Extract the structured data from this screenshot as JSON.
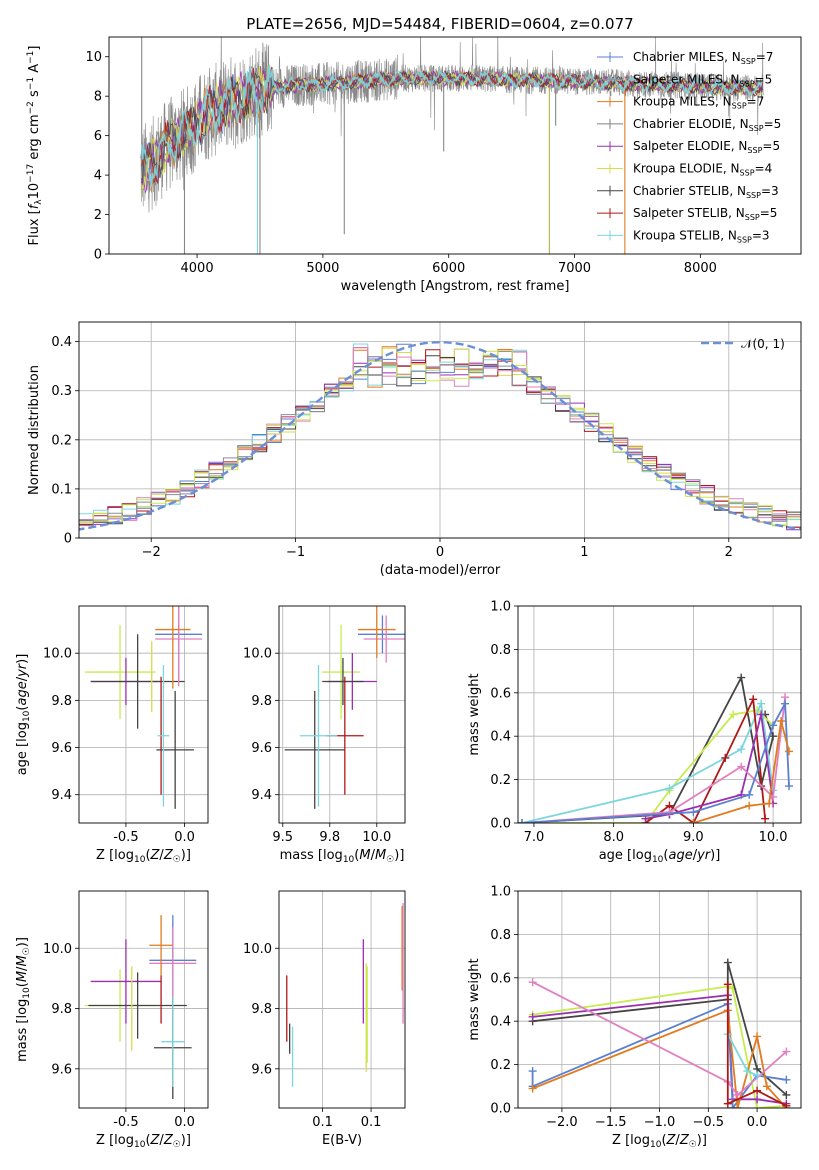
{
  "figure": {
    "title": "PLATE=2656, MJD=54484, FIBERID=0604, z=0.077"
  },
  "colors": {
    "Chabrier MILES": "#5b7fd1",
    "Salpeter MILES": "#8a8aa0",
    "Kroupa MILES": "#e07b20",
    "Chabrier ELODIE": "#808080",
    "Salpeter ELODIE": "#9b2fb0",
    "Kroupa ELODIE": "#d7dc4c",
    "Chabrier STELIB": "#444444",
    "Salpeter STELIB": "#b01818",
    "Kroupa STELIB": "#7dd6df",
    "extra_pink": "#e27fc0",
    "extra_lime": "#c6ec50",
    "normal_curve": "#6a8fd8"
  },
  "chart_data": [
    {
      "id": "spectrum",
      "type": "line",
      "title": "PLATE=2656, MJD=54484, FIBERID=0604, z=0.077",
      "xlabel": "wavelength [Angstrom, rest frame]",
      "ylabel": "Flux [f_λ 10^-17 erg cm^-2 s^-1 A^-1]",
      "xlim": [
        3300,
        8800
      ],
      "ylim": [
        0,
        11
      ],
      "xticks": [
        4000,
        5000,
        6000,
        7000,
        8000
      ],
      "yticks": [
        0,
        2,
        4,
        6,
        8,
        10
      ],
      "grid": false,
      "legend_position": "right",
      "legend": [
        {
          "label": "Chabrier MILES, N",
          "sub": "SSP",
          "suffix": "=7"
        },
        {
          "label": "Salpeter MILES, N",
          "sub": "SSP",
          "suffix": "=5"
        },
        {
          "label": "Kroupa MILES, N",
          "sub": "SSP",
          "suffix": "=7"
        },
        {
          "label": "Chabrier ELODIE, N",
          "sub": "SSP",
          "suffix": "=5"
        },
        {
          "label": "Salpeter ELODIE, N",
          "sub": "SSP",
          "suffix": "=5"
        },
        {
          "label": "Kroupa ELODIE, N",
          "sub": "SSP",
          "suffix": "=4"
        },
        {
          "label": "Chabrier STELIB, N",
          "sub": "SSP",
          "suffix": "=3"
        },
        {
          "label": "Salpeter STELIB, N",
          "sub": "SSP",
          "suffix": "=5"
        },
        {
          "label": "Kroupa STELIB, N",
          "sub": "SSP",
          "suffix": "=3"
        }
      ],
      "continuum_model": [
        [
          3550,
          4.2
        ],
        [
          3650,
          4.6
        ],
        [
          3750,
          5.4
        ],
        [
          3850,
          5.9
        ],
        [
          3950,
          6.3
        ],
        [
          4050,
          7.0
        ],
        [
          4150,
          7.3
        ],
        [
          4250,
          7.7
        ],
        [
          4350,
          7.9
        ],
        [
          4450,
          8.2
        ],
        [
          4550,
          8.4
        ],
        [
          4700,
          8.5
        ],
        [
          4850,
          8.6
        ],
        [
          5000,
          8.6
        ],
        [
          5200,
          8.7
        ],
        [
          5400,
          8.8
        ],
        [
          5600,
          8.9
        ],
        [
          5800,
          8.9
        ],
        [
          6000,
          8.9
        ],
        [
          6200,
          8.9
        ],
        [
          6400,
          8.85
        ],
        [
          6600,
          8.8
        ],
        [
          6800,
          8.8
        ],
        [
          7000,
          8.75
        ],
        [
          7200,
          8.7
        ],
        [
          7400,
          8.65
        ],
        [
          7600,
          8.6
        ],
        [
          7800,
          8.55
        ],
        [
          8000,
          8.5
        ],
        [
          8200,
          8.45
        ],
        [
          8400,
          8.4
        ],
        [
          8500,
          8.4
        ]
      ]
    },
    {
      "id": "residuals",
      "type": "histogram",
      "xlabel": "(data-model)/error",
      "ylabel": "Normed distribution",
      "xlim": [
        -2.5,
        2.5
      ],
      "ylim": [
        0,
        0.44
      ],
      "xticks": [
        -2,
        -1,
        0,
        1,
        2
      ],
      "yticks": [
        0.0,
        0.1,
        0.2,
        0.3,
        0.4
      ],
      "grid": true,
      "legend_position": "top-right",
      "legend": [
        {
          "label": "𝒩(0, 1)"
        }
      ],
      "normal_mu": 0,
      "normal_sigma": 1
    },
    {
      "id": "age-vs-Z",
      "type": "scatter",
      "xlabel": "Z [log10(Z/Z☉)]",
      "ylabel": "age  [log10(age/yr)]",
      "xlim": [
        -0.9,
        0.2
      ],
      "ylim": [
        9.28,
        10.2
      ],
      "xticks": [
        -0.5,
        0.0
      ],
      "yticks": [
        9.4,
        9.6,
        9.8,
        10.0
      ],
      "grid": true,
      "points": [
        {
          "x": -0.55,
          "y": 9.92,
          "xerr": 0.3,
          "yerr": 0.2,
          "c": "extra_lime"
        },
        {
          "x": -0.5,
          "y": 9.88,
          "xerr": 0.3,
          "yerr": 0.1,
          "c": "Salpeter ELODIE"
        },
        {
          "x": -0.4,
          "y": 9.88,
          "xerr": 0.4,
          "yerr": 0.2,
          "c": "Chabrier STELIB"
        },
        {
          "x": -0.28,
          "y": 9.9,
          "xerr": 0.0,
          "yerr": 0.15,
          "c": "Kroupa ELODIE"
        },
        {
          "x": -0.05,
          "y": 10.08,
          "xerr": 0.2,
          "yerr": 0.2,
          "c": "Chabrier MILES"
        },
        {
          "x": -0.05,
          "y": 10.06,
          "xerr": 0.2,
          "yerr": 0.2,
          "c": "extra_pink"
        },
        {
          "x": -0.1,
          "y": 10.1,
          "xerr": 0.15,
          "yerr": 0.25,
          "c": "Kroupa MILES"
        },
        {
          "x": -0.2,
          "y": 9.65,
          "xerr": 0.0,
          "yerr": 0.25,
          "c": "Salpeter STELIB"
        },
        {
          "x": -0.08,
          "y": 9.59,
          "xerr": 0.16,
          "yerr": 0.25,
          "c": "Chabrier STELIB"
        },
        {
          "x": -0.18,
          "y": 9.65,
          "xerr": 0.05,
          "yerr": 0.3,
          "c": "Kroupa STELIB"
        }
      ]
    },
    {
      "id": "age-vs-mass",
      "type": "scatter",
      "xlabel": "mass [log10(M/M☉)]",
      "ylabel": "",
      "xlim": [
        9.48,
        10.15
      ],
      "ylim": [
        9.28,
        10.2
      ],
      "xticks": [
        9.5,
        9.75,
        10.0
      ],
      "yticks": [
        9.4,
        9.6,
        9.8,
        10.0
      ],
      "grid": true,
      "points": [
        {
          "x": 9.81,
          "y": 9.92,
          "xerr": 0.1,
          "yerr": 0.2,
          "c": "extra_lime"
        },
        {
          "x": 9.87,
          "y": 9.88,
          "xerr": 0.13,
          "yerr": 0.12,
          "c": "Salpeter ELODIE"
        },
        {
          "x": 9.82,
          "y": 9.88,
          "xerr": 0.11,
          "yerr": 0.1,
          "c": "Chabrier STELIB"
        },
        {
          "x": 10.03,
          "y": 10.08,
          "xerr": 0.13,
          "yerr": 0.08,
          "c": "Chabrier MILES"
        },
        {
          "x": 10.05,
          "y": 10.06,
          "xerr": 0.12,
          "yerr": 0.1,
          "c": "extra_pink"
        },
        {
          "x": 10.0,
          "y": 10.1,
          "xerr": 0.1,
          "yerr": 0.12,
          "c": "Kroupa MILES"
        },
        {
          "x": 9.83,
          "y": 9.65,
          "xerr": 0.1,
          "yerr": 0.25,
          "c": "Salpeter STELIB"
        },
        {
          "x": 9.67,
          "y": 9.59,
          "xerr": 0.16,
          "yerr": 0.25,
          "c": "Chabrier STELIB"
        },
        {
          "x": 9.69,
          "y": 9.65,
          "xerr": 0.1,
          "yerr": 0.3,
          "c": "Kroupa STELIB"
        }
      ]
    },
    {
      "id": "weight-vs-age",
      "type": "line",
      "xlabel": "age  [log10(age/yr)]",
      "ylabel": "mass weight",
      "xlim": [
        6.8,
        10.35
      ],
      "ylim": [
        0,
        1.0
      ],
      "xticks": [
        7,
        8,
        9,
        10
      ],
      "yticks": [
        0.0,
        0.2,
        0.4,
        0.6,
        0.8,
        1.0
      ],
      "grid": true,
      "series": [
        {
          "c": "Chabrier STELIB",
          "x": [
            6.85,
            8.7,
            9.6,
            9.85,
            10.0,
            9.9
          ],
          "y": [
            0.0,
            0.04,
            0.67,
            0.17,
            0.4,
            0.5
          ]
        },
        {
          "c": "extra_lime",
          "x": [
            6.85,
            8.4,
            8.7,
            9.5,
            9.8,
            10.0
          ],
          "y": [
            0.0,
            0.0,
            0.15,
            0.5,
            0.52,
            0.45
          ]
        },
        {
          "c": "Kroupa STELIB",
          "x": [
            6.85,
            8.7,
            9.6,
            9.85,
            10.0
          ],
          "y": [
            0.0,
            0.16,
            0.34,
            0.55,
            0.15
          ]
        },
        {
          "c": "Salpeter STELIB",
          "x": [
            8.4,
            8.7,
            9.0,
            9.4,
            9.75,
            9.9
          ],
          "y": [
            0.0,
            0.08,
            0.0,
            0.3,
            0.57,
            0.02
          ]
        },
        {
          "c": "Salpeter ELODIE",
          "x": [
            8.4,
            8.7,
            9.6,
            9.85,
            10.0
          ],
          "y": [
            0.02,
            0.04,
            0.13,
            0.5,
            0.09
          ]
        },
        {
          "c": "extra_pink",
          "x": [
            6.85,
            8.7,
            9.6,
            10.0,
            10.15
          ],
          "y": [
            0.0,
            0.05,
            0.26,
            0.12,
            0.58
          ]
        },
        {
          "c": "Chabrier MILES",
          "x": [
            6.85,
            9.0,
            9.7,
            10.0,
            10.15,
            10.2
          ],
          "y": [
            0.0,
            0.05,
            0.13,
            0.45,
            0.55,
            0.17
          ]
        },
        {
          "c": "Kroupa MILES",
          "x": [
            9.0,
            9.7,
            9.95,
            10.1,
            10.2
          ],
          "y": [
            0.0,
            0.08,
            0.09,
            0.47,
            0.33
          ]
        }
      ]
    },
    {
      "id": "mass-vs-Z",
      "type": "scatter",
      "xlabel": "Z [log10(Z/Z☉)]",
      "ylabel": "mass [log10(M/M☉)]",
      "xlim": [
        -0.9,
        0.2
      ],
      "ylim": [
        9.47,
        10.19
      ],
      "xticks": [
        -0.5,
        0.0
      ],
      "yticks": [
        9.6,
        9.8,
        10.0
      ],
      "grid": true,
      "points": [
        {
          "x": -0.55,
          "y": 9.81,
          "xerr": 0.3,
          "yerr": 0.12,
          "c": "extra_lime"
        },
        {
          "x": -0.5,
          "y": 9.89,
          "xerr": 0.3,
          "yerr": 0.14,
          "c": "Salpeter ELODIE"
        },
        {
          "x": -0.4,
          "y": 9.81,
          "xerr": 0.42,
          "yerr": 0.11,
          "c": "Chabrier STELIB"
        },
        {
          "x": -0.45,
          "y": 9.8,
          "xerr": 0.0,
          "yerr": 0.14,
          "c": "Kroupa ELODIE"
        },
        {
          "x": -0.1,
          "y": 9.96,
          "xerr": 0.2,
          "yerr": 0.15,
          "c": "Chabrier MILES"
        },
        {
          "x": -0.1,
          "y": 9.95,
          "xerr": 0.2,
          "yerr": 0.12,
          "c": "extra_pink"
        },
        {
          "x": -0.2,
          "y": 10.01,
          "xerr": 0.1,
          "yerr": 0.1,
          "c": "Kroupa MILES"
        },
        {
          "x": -0.2,
          "y": 9.83,
          "xerr": 0.0,
          "yerr": 0.08,
          "c": "Salpeter STELIB"
        },
        {
          "x": -0.1,
          "y": 9.67,
          "xerr": 0.16,
          "yerr": 0.17,
          "c": "Chabrier STELIB"
        },
        {
          "x": -0.1,
          "y": 9.69,
          "xerr": 0.1,
          "yerr": 0.15,
          "c": "Kroupa STELIB"
        }
      ]
    },
    {
      "id": "mass-vs-EBV",
      "type": "scatter",
      "xlabel": "E(B-V)",
      "ylabel": "",
      "xlim": [
        0.055,
        0.185
      ],
      "ylim": [
        9.47,
        10.19
      ],
      "xticks": [
        0.1,
        0.15
      ],
      "yticks": [
        9.6,
        9.8,
        10.0
      ],
      "grid": true,
      "points": [
        {
          "x": 0.063,
          "y": 9.8,
          "xerr": 0.0,
          "yerr": 0.11,
          "c": "Salpeter STELIB"
        },
        {
          "x": 0.066,
          "y": 9.7,
          "xerr": 0.0,
          "yerr": 0.05,
          "c": "Chabrier STELIB"
        },
        {
          "x": 0.069,
          "y": 9.64,
          "xerr": 0.0,
          "yerr": 0.1,
          "c": "Kroupa STELIB"
        },
        {
          "x": 0.142,
          "y": 9.89,
          "xerr": 0.0,
          "yerr": 0.14,
          "c": "Salpeter ELODIE"
        },
        {
          "x": 0.145,
          "y": 9.77,
          "xerr": 0.0,
          "yerr": 0.18,
          "c": "Kroupa ELODIE"
        },
        {
          "x": 0.146,
          "y": 9.78,
          "xerr": 0.0,
          "yerr": 0.16,
          "c": "extra_lime"
        },
        {
          "x": 0.182,
          "y": 10.0,
          "xerr": 0.0,
          "yerr": 0.14,
          "c": "Kroupa MILES"
        },
        {
          "x": 0.183,
          "y": 9.95,
          "xerr": 0.0,
          "yerr": 0.2,
          "c": "extra_pink"
        }
      ]
    },
    {
      "id": "weight-vs-Z",
      "type": "line",
      "xlabel": "Z [log10(Z/Z☉)]",
      "ylabel": "mass weight",
      "xlim": [
        -2.45,
        0.45
      ],
      "ylim": [
        0,
        1.0
      ],
      "xticks": [
        -2.0,
        -1.5,
        -1.0,
        -0.5,
        0.0
      ],
      "yticks": [
        0.0,
        0.2,
        0.4,
        0.6,
        0.8,
        1.0
      ],
      "grid": true,
      "series": [
        {
          "c": "extra_lime",
          "x": [
            -2.3,
            -0.3,
            -0.25,
            0.0,
            0.3
          ],
          "y": [
            0.43,
            0.56,
            0.55,
            0.0,
            0.01
          ]
        },
        {
          "c": "Chabrier STELIB",
          "x": [
            -2.3,
            -0.3,
            -0.3,
            0.0,
            0.3
          ],
          "y": [
            0.4,
            0.5,
            0.67,
            0.18,
            0.06
          ]
        },
        {
          "c": "Salpeter ELODIE",
          "x": [
            -2.3,
            -0.3,
            -0.25,
            0.0,
            0.3
          ],
          "y": [
            0.42,
            0.52,
            0.04,
            0.04,
            0.02
          ]
        },
        {
          "c": "Chabrier MILES",
          "x": [
            -2.3,
            -2.3,
            -0.3,
            -0.25,
            0.0,
            0.3
          ],
          "y": [
            0.17,
            0.1,
            0.48,
            0.0,
            0.15,
            0.13
          ]
        },
        {
          "c": "Kroupa MILES",
          "x": [
            -2.3,
            -0.3,
            -0.2,
            0.0,
            0.1,
            0.3
          ],
          "y": [
            0.09,
            0.45,
            0.0,
            0.33,
            0.1,
            0.0
          ]
        },
        {
          "c": "extra_pink",
          "x": [
            -2.3,
            -0.3,
            -0.2,
            0.3
          ],
          "y": [
            0.58,
            0.12,
            0.06,
            0.26
          ]
        },
        {
          "c": "Kroupa STELIB",
          "x": [
            -0.3,
            -0.1,
            0.0
          ],
          "y": [
            0.34,
            0.17,
            0.15
          ]
        },
        {
          "c": "Salpeter STELIB",
          "x": [
            -0.3,
            -0.3,
            0.0,
            0.3
          ],
          "y": [
            0.57,
            0.02,
            0.08,
            0.01
          ]
        }
      ]
    }
  ]
}
